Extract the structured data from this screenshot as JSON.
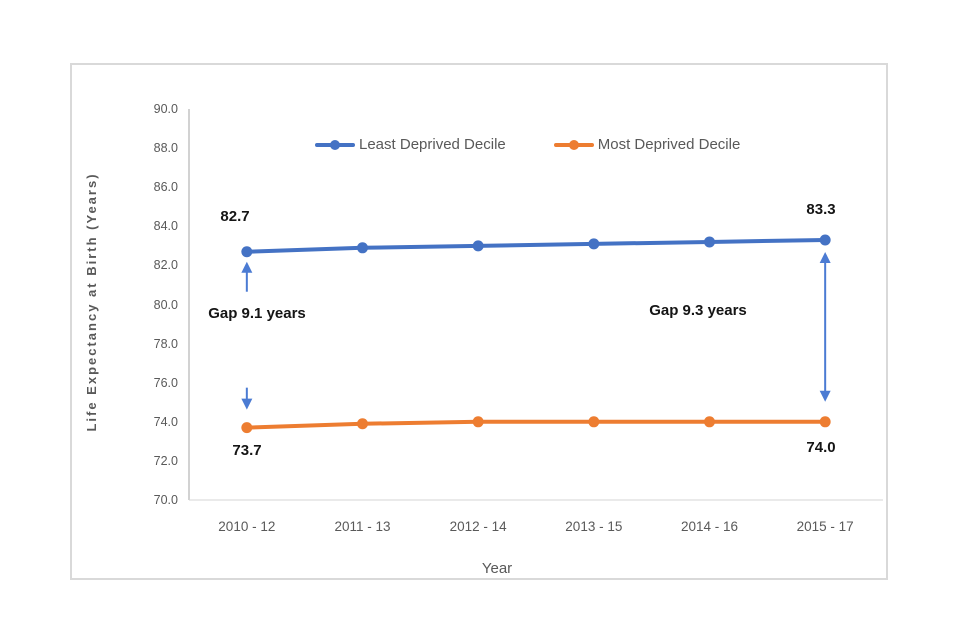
{
  "figure": {
    "border_color": "#d9d9d9",
    "background": "#ffffff"
  },
  "chart_data": {
    "type": "line",
    "title": "",
    "xlabel": "Year",
    "ylabel": "Life Expectancy at Birth (Years)",
    "categories": [
      "2010 - 12",
      "2011 - 13",
      "2012 - 14",
      "2013 - 15",
      "2014 - 16",
      "2015 - 17"
    ],
    "series": [
      {
        "name": "Least Deprived Decile",
        "color": "#4472C4",
        "values": [
          82.7,
          82.9,
          83.0,
          83.1,
          83.2,
          83.3
        ]
      },
      {
        "name": "Most Deprived Decile",
        "color": "#ED7D31",
        "values": [
          73.7,
          73.9,
          74.0,
          74.0,
          74.0,
          74.0
        ]
      }
    ],
    "ylim": [
      70.0,
      90.0
    ],
    "ytick_step": 2.0,
    "ytick_labels": [
      "90.0",
      "88.0",
      "86.0",
      "84.0",
      "82.0",
      "80.0",
      "78.0",
      "76.0",
      "74.0",
      "72.0",
      "70.0"
    ],
    "grid": false,
    "legend_position": "top-center",
    "axis_line_color": "#a6a6a6",
    "baseline_color": "#d6d6d6",
    "arrow_color": "#4b7bd3",
    "annotations": {
      "blue_start": "82.7",
      "blue_end": "83.3",
      "orange_start": "73.7",
      "orange_end": "74.0",
      "gap_start": "Gap 9.1 years",
      "gap_end": "Gap 9.3 years"
    }
  }
}
